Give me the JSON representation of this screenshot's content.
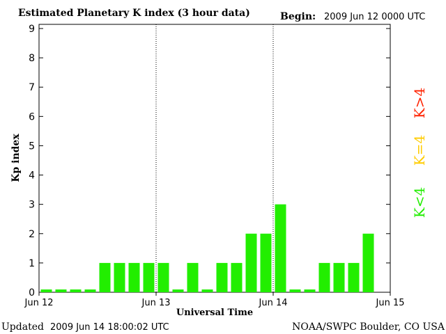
{
  "header": {
    "title": "Estimated Planetary K index (3 hour data)",
    "begin_label": "Begin:",
    "begin_value": "2009 Jun 12 0000 UTC"
  },
  "footer": {
    "updated_label": "Updated",
    "updated_value": "2009 Jun 14 18:00:02 UTC",
    "credit": "NOAA/SWPC Boulder, CO USA"
  },
  "legend": [
    {
      "label": "K>4",
      "color": "#ff2200"
    },
    {
      "label": "K=4",
      "color": "#ffcc00"
    },
    {
      "label": "K<4",
      "color": "#22ee00"
    }
  ],
  "chart_data": {
    "type": "bar",
    "title": "Estimated Planetary K index (3 hour data)",
    "xlabel": "Universal Time",
    "ylabel": "Kp index",
    "ylim": [
      0,
      9
    ],
    "y_ticks": [
      "0",
      "1",
      "2",
      "3",
      "4",
      "5",
      "6",
      "7",
      "8",
      "9"
    ],
    "x_ticks": [
      "Jun 12",
      "Jun 13",
      "Jun 14",
      "Jun 15"
    ],
    "day_separators": [
      "Jun 13",
      "Jun 14"
    ],
    "interval_hours": 3,
    "values": [
      0,
      0,
      0,
      0,
      1,
      1,
      1,
      1,
      1,
      0,
      1,
      0,
      1,
      1,
      2,
      2,
      3,
      0,
      0,
      1,
      1,
      1,
      2
    ],
    "bar_color": "#22ee00",
    "grid": false
  }
}
